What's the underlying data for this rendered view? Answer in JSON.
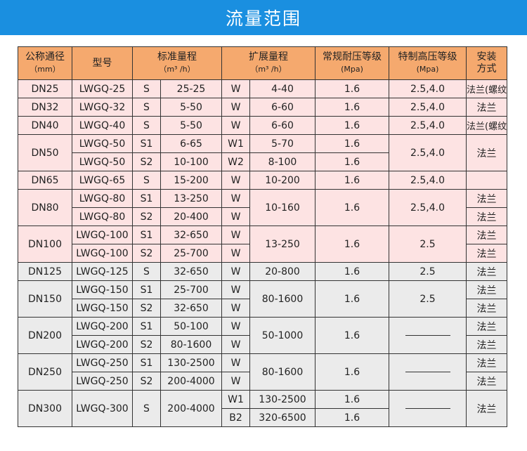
{
  "banner": {
    "title": "流量范围"
  },
  "table": {
    "headers": {
      "nominal": "公称通径",
      "nominal_unit": "（mm）",
      "model": "型号",
      "std": "标准量程",
      "std_unit": "（m³ /h）",
      "ext": "扩展量程",
      "ext_unit": "（m³ /h）",
      "normal_pressure": "常规耐压等级",
      "normal_pressure_unit": "(Mpa)",
      "special_pressure": "特制高压等级",
      "special_pressure_unit": "(Mpa)",
      "install": "安装",
      "install2": "方式"
    },
    "rows": [
      {
        "dn": "DN25",
        "items": [
          {
            "model": "LWGQ-25",
            "sc": "S",
            "sr": "25-25",
            "ec": "W",
            "er": "4-40",
            "np": "1.6",
            "hp": "2.5,4.0",
            "inst": "法兰(螺纹)"
          }
        ]
      },
      {
        "dn": "DN32",
        "items": [
          {
            "model": "LWGQ-32",
            "sc": "S",
            "sr": "5-50",
            "ec": "W",
            "er": "6-60",
            "np": "1.6",
            "hp": "2.5,4.0",
            "inst": "法兰"
          }
        ]
      },
      {
        "dn": "DN40",
        "items": [
          {
            "model": "LWGQ-40",
            "sc": "S",
            "sr": "5-50",
            "ec": "W",
            "er": "6-60",
            "np": "1.6",
            "hp": "2.5,4.0",
            "inst": "法兰(螺纹)"
          }
        ]
      },
      {
        "dn": "DN50",
        "np": "1.6",
        "hp": "2.5,4.0",
        "inst": "法兰",
        "items": [
          {
            "model": "LWGQ-50",
            "sc": "S1",
            "sr": "6-65",
            "ec": "W1",
            "er": "5-70",
            "np": "1.6"
          },
          {
            "model": "LWGQ-50",
            "sc": "S2",
            "sr": "10-100",
            "ec": "W2",
            "er": "8-100",
            "np": "1.6"
          }
        ]
      },
      {
        "dn": "DN65",
        "items": [
          {
            "model": "LWGQ-65",
            "sc": "S",
            "sr": "15-200",
            "ec": "W",
            "er": "10-200",
            "np": "1.6",
            "hp": "2.5,4.0",
            "inst": ""
          }
        ]
      },
      {
        "dn": "DN80",
        "er": "10-160",
        "np": "1.6",
        "hp": "2.5,4.0",
        "items": [
          {
            "model": "LWGQ-80",
            "sc": "S1",
            "sr": "13-250",
            "ec": "W",
            "inst": "法兰"
          },
          {
            "model": "LWGQ-80",
            "sc": "S2",
            "sr": "20-400",
            "ec": "W",
            "inst": "法兰"
          }
        ]
      },
      {
        "dn": "DN100",
        "er": "13-250",
        "np": "1.6",
        "hp": "2.5",
        "items": [
          {
            "model": "LWGQ-100",
            "sc": "S1",
            "sr": "32-650",
            "ec": "W",
            "inst": "法兰"
          },
          {
            "model": "LWGQ-100",
            "sc": "S2",
            "sr": "25-700",
            "ec": "W",
            "inst": "法兰"
          }
        ]
      },
      {
        "dn": "DN125",
        "items": [
          {
            "model": "LWGQ-125",
            "sc": "S",
            "sr": "32-650",
            "ec": "W",
            "er": "20-800",
            "np": "1.6",
            "hp": "2.5",
            "inst": "法兰"
          }
        ]
      },
      {
        "dn": "DN150",
        "er": "80-1600",
        "np": "1.6",
        "hp": "2.5",
        "items": [
          {
            "model": "LWGQ-150",
            "sc": "S1",
            "sr": "25-700",
            "ec": "W",
            "inst": "法兰"
          },
          {
            "model": "LWGQ-150",
            "sc": "S2",
            "sr": "32-650",
            "ec": "W",
            "inst": "法兰"
          }
        ]
      },
      {
        "dn": "DN200",
        "er": "50-1000",
        "np": "1.6",
        "hp": "",
        "items": [
          {
            "model": "LWGQ-200",
            "sc": "S1",
            "sr": "50-100",
            "ec": "W",
            "inst": "法兰"
          },
          {
            "model": "LWGQ-200",
            "sc": "S2",
            "sr": "80-1600",
            "ec": "W",
            "inst": "法兰"
          }
        ]
      },
      {
        "dn": "DN250",
        "er": "80-1600",
        "np": "1.6",
        "hp": "",
        "items": [
          {
            "model": "LWGQ-250",
            "sc": "S1",
            "sr": "130-2500",
            "ec": "W",
            "inst": "法兰"
          },
          {
            "model": "LWGQ-250",
            "sc": "S2",
            "sr": "200-4000",
            "ec": "W",
            "inst": "法兰"
          }
        ]
      },
      {
        "dn": "DN300",
        "model": "LWGQ-300",
        "sc": "S",
        "sr": "200-4000",
        "hp": "",
        "inst": "法兰",
        "items": [
          {
            "ec": "W1",
            "er": "130-2500",
            "np": "1.6"
          },
          {
            "ec": "B2",
            "er": "320-6500",
            "np": "1.6"
          }
        ]
      }
    ]
  }
}
